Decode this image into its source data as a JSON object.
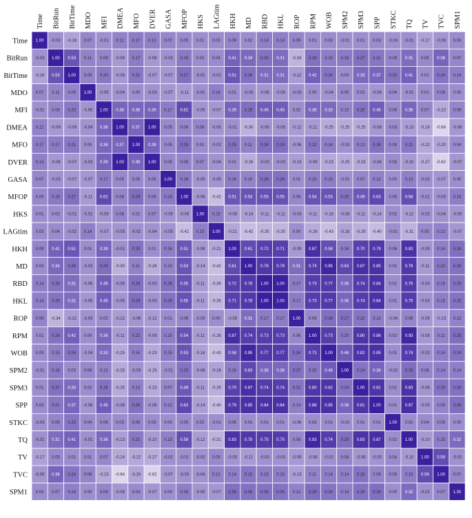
{
  "chart_data": {
    "type": "heatmap",
    "variables": [
      "Time",
      "BitRun",
      "BitTime",
      "MDO",
      "MFI",
      "DMEA",
      "MFO",
      "DVER",
      "GASA",
      "MFOP",
      "HKS",
      "LAGtim",
      "HKH",
      "MD",
      "RBD",
      "HKL",
      "ROP",
      "RPM",
      "WOB",
      "SPM2",
      "SPM3",
      "SPP",
      "STKC",
      "TQ",
      "TV",
      "TVC",
      "SPM1"
    ],
    "values": [
      [
        1.0,
        -0.03,
        -0.18,
        0.07,
        -0.01,
        0.12,
        0.17,
        0.13,
        0.07,
        0.05,
        0.01,
        0.03,
        0.09,
        0.02,
        0.14,
        0.14,
        0.09,
        0.01,
        0.03,
        -0.01,
        0.01,
        0.03,
        -0.03,
        -0.01,
        -0.17,
        -0.06,
        0.03
      ],
      [
        -0.03,
        1.0,
        0.53,
        0.11,
        0.09,
        -0.09,
        0.17,
        -0.08,
        -0.03,
        0.19,
        0.02,
        0.04,
        0.41,
        0.34,
        0.25,
        0.31,
        -0.34,
        0.26,
        0.15,
        0.18,
        0.27,
        0.21,
        0.09,
        0.31,
        0.05,
        0.38,
        0.07
      ],
      [
        -0.18,
        0.53,
        1.0,
        0.09,
        0.2,
        -0.09,
        0.21,
        -0.07,
        -0.07,
        0.27,
        -0.01,
        -0.02,
        0.51,
        0.26,
        0.31,
        0.31,
        -0.12,
        0.42,
        0.24,
        0.03,
        0.33,
        0.37,
        0.23,
        0.41,
        0.01,
        0.24,
        0.14
      ],
      [
        0.07,
        0.11,
        0.09,
        1.0,
        -0.05,
        -0.04,
        0.0,
        -0.03,
        -0.07,
        -0.11,
        -0.01,
        0.14,
        0.01,
        -0.03,
        -0.06,
        -0.06,
        -0.03,
        0.0,
        -0.04,
        0.05,
        0.02,
        -0.06,
        0.04,
        -0.01,
        0.01,
        0.08,
        -0.0
      ],
      [
        -0.01,
        0.09,
        0.2,
        -0.05,
        1.0,
        0.38,
        0.36,
        0.39,
        0.17,
        0.62,
        -0.05,
        -0.07,
        0.39,
        0.29,
        0.45,
        0.45,
        0.02,
        0.36,
        0.33,
        0.1,
        0.25,
        0.45,
        0.06,
        0.36,
        0.07,
        -0.23,
        0.09
      ],
      [
        0.12,
        -0.09,
        -0.09,
        -0.04,
        0.38,
        1.0,
        0.37,
        1.0,
        0.05,
        0.08,
        0.08,
        -0.05,
        -0.01,
        -0.3,
        -0.05,
        -0.05,
        -0.12,
        -0.11,
        -0.25,
        -0.25,
        -0.25,
        -0.08,
        0.03,
        -0.13,
        -0.24,
        -0.64,
        -0.08
      ],
      [
        0.17,
        0.17,
        0.21,
        0.0,
        0.36,
        0.37,
        1.0,
        0.39,
        0.05,
        0.29,
        0.02,
        -0.02,
        0.25,
        0.11,
        0.28,
        0.29,
        -0.06,
        0.22,
        0.14,
        -0.03,
        0.13,
        0.26,
        0.09,
        0.21,
        -0.22,
        -0.2,
        0.04
      ],
      [
        0.13,
        -0.08,
        -0.07,
        -0.03,
        0.39,
        1.0,
        0.39,
        1.0,
        0.05,
        0.09,
        0.07,
        -0.04,
        0.01,
        -0.28,
        -0.03,
        -0.03,
        -0.13,
        -0.09,
        -0.23,
        -0.25,
        -0.23,
        -0.06,
        0.03,
        -0.1,
        -0.27,
        -0.62,
        -0.07
      ],
      [
        0.07,
        -0.03,
        -0.07,
        -0.07,
        0.17,
        0.05,
        0.05,
        0.05,
        1.0,
        0.18,
        -0.05,
        -0.05,
        0.16,
        0.1,
        0.26,
        0.26,
        0.01,
        0.15,
        0.15,
        -0.01,
        0.07,
        0.12,
        -0.0,
        0.13,
        -0.02,
        -0.07,
        0.0
      ],
      [
        0.05,
        0.19,
        0.27,
        -0.11,
        0.62,
        0.08,
        0.29,
        0.09,
        0.18,
        1.0,
        -0.06,
        -0.42,
        0.51,
        0.53,
        0.55,
        0.55,
        0.06,
        0.54,
        0.53,
        0.25,
        0.49,
        0.63,
        0.05,
        0.58,
        -0.01,
        -0.03,
        0.15
      ],
      [
        0.01,
        0.02,
        -0.01,
        -0.01,
        -0.05,
        0.08,
        0.02,
        0.07,
        -0.05,
        -0.06,
        1.0,
        0.15,
        -0.08,
        -0.14,
        -0.11,
        -0.11,
        -0.03,
        -0.11,
        -0.16,
        -0.08,
        -0.11,
        -0.14,
        0.02,
        -0.12,
        -0.02,
        -0.04,
        -0.05
      ],
      [
        0.03,
        0.04,
        -0.02,
        0.14,
        -0.07,
        -0.05,
        -0.02,
        -0.04,
        -0.05,
        -0.42,
        0.15,
        1.0,
        -0.21,
        -0.42,
        -0.35,
        -0.35,
        -0.0,
        -0.26,
        -0.43,
        -0.18,
        -0.29,
        -0.4,
        -0.01,
        -0.31,
        0.05,
        0.12,
        -0.07
      ],
      [
        0.09,
        0.41,
        0.51,
        0.01,
        0.39,
        -0.01,
        0.25,
        0.01,
        0.16,
        0.51,
        -0.08,
        -0.21,
        1.0,
        0.61,
        0.72,
        0.71,
        -0.09,
        0.87,
        0.58,
        0.16,
        0.7,
        0.79,
        0.06,
        0.83,
        -0.05,
        0.14,
        0.28
      ],
      [
        0.02,
        0.34,
        0.26,
        -0.03,
        0.29,
        -0.3,
        0.11,
        -0.28,
        0.1,
        0.53,
        -0.14,
        -0.42,
        0.61,
        1.0,
        0.78,
        0.78,
        0.31,
        0.74,
        0.95,
        0.63,
        0.87,
        0.85,
        0.01,
        0.78,
        -0.11,
        0.22,
        0.26
      ],
      [
        0.14,
        0.25,
        0.31,
        -0.06,
        0.45,
        -0.05,
        0.28,
        -0.03,
        0.26,
        0.55,
        -0.11,
        -0.35,
        0.72,
        0.78,
        1.0,
        1.0,
        0.17,
        0.73,
        0.77,
        0.36,
        0.74,
        0.84,
        0.01,
        0.75,
        -0.03,
        0.15,
        0.25
      ],
      [
        0.14,
        0.25,
        0.31,
        -0.06,
        0.45,
        -0.05,
        0.29,
        -0.03,
        0.26,
        0.55,
        -0.11,
        -0.35,
        0.71,
        0.78,
        1.0,
        1.0,
        0.17,
        0.73,
        0.77,
        0.36,
        0.74,
        0.84,
        0.01,
        0.75,
        -0.03,
        0.15,
        0.25
      ],
      [
        0.09,
        -0.34,
        -0.12,
        -0.03,
        0.02,
        -0.12,
        -0.06,
        -0.12,
        0.01,
        0.06,
        -0.03,
        -0.0,
        -0.09,
        0.31,
        0.17,
        0.17,
        1.0,
        0.06,
        0.28,
        0.27,
        0.22,
        0.13,
        -0.06,
        0.08,
        -0.09,
        -0.13,
        0.12
      ],
      [
        0.01,
        0.26,
        0.42,
        0.0,
        0.36,
        -0.11,
        0.22,
        -0.09,
        0.15,
        0.54,
        -0.11,
        -0.26,
        0.87,
        0.74,
        0.73,
        0.73,
        0.06,
        1.0,
        0.73,
        0.2,
        0.8,
        0.86,
        0.02,
        0.93,
        -0.08,
        0.11,
        0.29
      ],
      [
        0.03,
        0.15,
        0.24,
        -0.04,
        0.33,
        -0.25,
        0.14,
        -0.23,
        0.15,
        0.53,
        -0.16,
        -0.43,
        0.58,
        0.95,
        0.77,
        0.77,
        0.28,
        0.73,
        1.0,
        0.46,
        0.82,
        0.85,
        0.01,
        0.74,
        -0.02,
        0.14,
        0.24
      ],
      [
        -0.01,
        0.18,
        0.03,
        0.06,
        0.1,
        -0.25,
        -0.03,
        -0.25,
        -0.01,
        0.25,
        -0.08,
        -0.18,
        0.16,
        0.63,
        0.36,
        0.36,
        0.27,
        0.2,
        0.46,
        1.0,
        0.24,
        0.38,
        -0.02,
        0.29,
        0.08,
        0.14,
        0.14
      ],
      [
        0.01,
        0.27,
        0.33,
        0.02,
        0.25,
        -0.25,
        0.13,
        -0.23,
        0.07,
        0.49,
        -0.11,
        -0.29,
        0.7,
        0.87,
        0.74,
        0.74,
        0.22,
        0.8,
        0.82,
        0.24,
        1.0,
        0.81,
        0.01,
        0.83,
        -0.06,
        0.25,
        0.26
      ],
      [
        0.03,
        0.21,
        0.37,
        -0.06,
        0.45,
        -0.08,
        0.26,
        -0.06,
        0.12,
        0.63,
        -0.14,
        -0.4,
        0.79,
        0.85,
        0.84,
        0.84,
        0.13,
        0.86,
        0.85,
        0.38,
        0.81,
        1.0,
        0.01,
        0.87,
        -0.05,
        0.09,
        0.28
      ],
      [
        -0.03,
        0.09,
        0.23,
        0.04,
        0.06,
        0.03,
        0.09,
        0.03,
        -0.0,
        0.05,
        0.02,
        -0.01,
        0.06,
        0.01,
        0.01,
        0.01,
        -0.06,
        0.02,
        0.01,
        -0.02,
        0.01,
        0.01,
        1.0,
        0.02,
        0.04,
        0.05,
        0.0
      ],
      [
        -0.01,
        0.31,
        0.41,
        -0.01,
        0.36,
        -0.13,
        0.21,
        -0.1,
        0.13,
        0.58,
        -0.12,
        -0.31,
        0.83,
        0.78,
        0.75,
        0.75,
        0.08,
        0.93,
        0.74,
        0.29,
        0.83,
        0.87,
        0.02,
        1.0,
        -0.1,
        0.15,
        0.32
      ],
      [
        -0.17,
        0.05,
        0.01,
        0.01,
        0.07,
        -0.24,
        -0.22,
        -0.27,
        -0.02,
        -0.01,
        -0.02,
        0.05,
        -0.05,
        -0.11,
        -0.03,
        -0.03,
        -0.09,
        -0.08,
        -0.02,
        0.08,
        -0.06,
        -0.05,
        0.04,
        -0.1,
        1.0,
        0.59,
        -0.02
      ],
      [
        -0.06,
        0.38,
        0.24,
        0.08,
        -0.23,
        -0.64,
        -0.2,
        -0.62,
        -0.07,
        -0.03,
        -0.04,
        0.12,
        0.14,
        0.22,
        0.15,
        0.15,
        -0.13,
        0.11,
        0.14,
        0.14,
        0.25,
        0.09,
        0.05,
        0.15,
        0.59,
        1.0,
        0.07
      ],
      [
        0.03,
        0.07,
        0.14,
        -0.0,
        0.09,
        -0.08,
        0.04,
        -0.07,
        0.0,
        0.15,
        -0.05,
        -0.07,
        0.28,
        0.26,
        0.25,
        0.25,
        0.12,
        0.29,
        0.24,
        0.14,
        0.26,
        0.28,
        0.0,
        0.32,
        -0.02,
        0.07,
        1.0
      ]
    ],
    "value_range": [
      -1,
      1
    ],
    "colors": {
      "low": "#ffffff",
      "high": "#3a1f9e",
      "text_light": "#ffffff",
      "text_dark": "#2b2b2b"
    },
    "legend": "none",
    "grid": true
  }
}
